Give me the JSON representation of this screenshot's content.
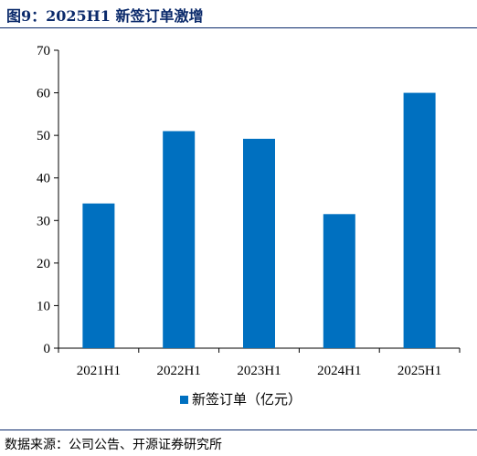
{
  "header": {
    "title": "图9：2025H1 新签订单激增"
  },
  "footer": {
    "source": "数据来源：公司公告、开源证券研究所"
  },
  "colors": {
    "bar": "#0070c0",
    "title": "#0b2a6b"
  },
  "chart_data": {
    "type": "bar",
    "categories": [
      "2021H1",
      "2022H1",
      "2023H1",
      "2024H1",
      "2025H1"
    ],
    "series": [
      {
        "name": "新签订单（亿元）",
        "values": [
          34,
          51,
          49.2,
          31.5,
          60
        ]
      }
    ],
    "ylim": [
      0,
      70
    ],
    "yticks": [
      0,
      10,
      20,
      30,
      40,
      50,
      60,
      70
    ],
    "xlabel": "",
    "ylabel": "",
    "grid": false,
    "legend": "bottom"
  }
}
